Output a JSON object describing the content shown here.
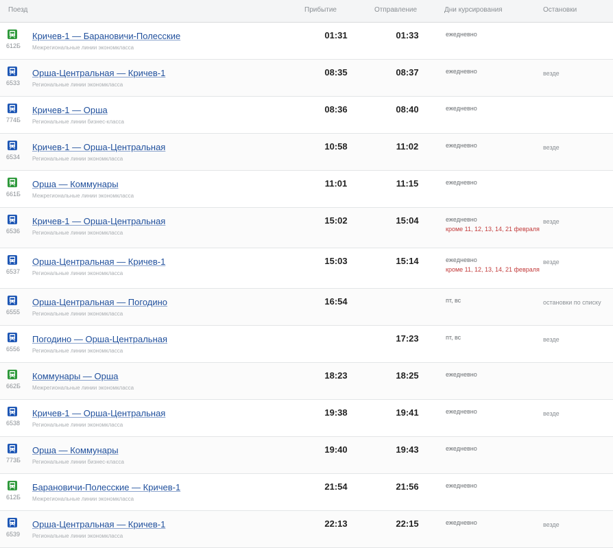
{
  "header": {
    "train": "Поезд",
    "arrival": "Прибытие",
    "departure": "Отправление",
    "days": "Дни курсирования",
    "stops": "Остановки"
  },
  "colors": {
    "regional": "#1e57b5",
    "interregional": "#2f9a3c",
    "link": "#1f4f9c",
    "extra_days": "#c23a3a"
  },
  "rows": [
    {
      "icon": "green-train-icon",
      "kind": "green",
      "number": "612Б",
      "route": "Кричев-1 — Барановичи-Полесские",
      "subtype": "Межрегиональные линии экономкласса",
      "arrival": "01:31",
      "departure": "01:33",
      "days": "ежедневно",
      "days_extra": "",
      "stops": ""
    },
    {
      "icon": "blue-train-icon",
      "kind": "blue",
      "number": "6533",
      "route": "Орша-Центральная — Кричев-1",
      "subtype": "Региональные линии экономкласса",
      "arrival": "08:35",
      "departure": "08:37",
      "days": "ежедневно",
      "days_extra": "",
      "stops": "везде"
    },
    {
      "icon": "blue-train-icon",
      "kind": "blue",
      "number": "774Б",
      "route": "Кричев-1 — Орша",
      "subtype": "Региональные линии бизнес-класса",
      "arrival": "08:36",
      "departure": "08:40",
      "days": "ежедневно",
      "days_extra": "",
      "stops": ""
    },
    {
      "icon": "blue-train-icon",
      "kind": "blue",
      "number": "6534",
      "route": "Кричев-1 — Орша-Центральная",
      "subtype": "Региональные линии экономкласса",
      "arrival": "10:58",
      "departure": "11:02",
      "days": "ежедневно",
      "days_extra": "",
      "stops": "везде"
    },
    {
      "icon": "green-train-icon",
      "kind": "green",
      "number": "661Б",
      "route": "Орша — Коммунары",
      "subtype": "Межрегиональные линии экономкласса",
      "arrival": "11:01",
      "departure": "11:15",
      "days": "ежедневно",
      "days_extra": "",
      "stops": ""
    },
    {
      "icon": "blue-train-icon",
      "kind": "blue",
      "number": "6536",
      "route": "Кричев-1 — Орша-Центральная",
      "subtype": "Региональные линии экономкласса",
      "arrival": "15:02",
      "departure": "15:04",
      "days": "ежедневно",
      "days_extra": "кроме 11, 12, 13, 14, 21 февраля",
      "stops": "везде"
    },
    {
      "icon": "blue-train-icon",
      "kind": "blue",
      "number": "6537",
      "route": "Орша-Центральная — Кричев-1",
      "subtype": "Региональные линии экономкласса",
      "arrival": "15:03",
      "departure": "15:14",
      "days": "ежедневно",
      "days_extra": "кроме 11, 12, 13, 14, 21 февраля",
      "stops": "везде"
    },
    {
      "icon": "blue-train-icon",
      "kind": "blue",
      "number": "6555",
      "route": "Орша-Центральная — Погодино",
      "subtype": "Региональные линии экономкласса",
      "arrival": "16:54",
      "departure": "",
      "days": "пт, вс",
      "days_extra": "",
      "stops": "остановки по списку"
    },
    {
      "icon": "blue-train-icon",
      "kind": "blue",
      "number": "6556",
      "route": "Погодино — Орша-Центральная",
      "subtype": "Региональные линии экономкласса",
      "arrival": "",
      "departure": "17:23",
      "days": "пт, вс",
      "days_extra": "",
      "stops": "везде"
    },
    {
      "icon": "green-train-icon",
      "kind": "green",
      "number": "662Б",
      "route": "Коммунары — Орша",
      "subtype": "Межрегиональные линии экономкласса",
      "arrival": "18:23",
      "departure": "18:25",
      "days": "ежедневно",
      "days_extra": "",
      "stops": ""
    },
    {
      "icon": "blue-train-icon",
      "kind": "blue",
      "number": "6538",
      "route": "Кричев-1 — Орша-Центральная",
      "subtype": "Региональные линии экономкласса",
      "arrival": "19:38",
      "departure": "19:41",
      "days": "ежедневно",
      "days_extra": "",
      "stops": "везде"
    },
    {
      "icon": "blue-train-icon",
      "kind": "blue",
      "number": "773Б",
      "route": "Орша — Коммунары",
      "subtype": "Региональные линии бизнес-класса",
      "arrival": "19:40",
      "departure": "19:43",
      "days": "ежедневно",
      "days_extra": "",
      "stops": ""
    },
    {
      "icon": "green-train-icon",
      "kind": "green",
      "number": "612Б",
      "route": "Барановичи-Полесские — Кричев-1",
      "subtype": "Межрегиональные линии экономкласса",
      "arrival": "21:54",
      "departure": "21:56",
      "days": "ежедневно",
      "days_extra": "",
      "stops": ""
    },
    {
      "icon": "blue-train-icon",
      "kind": "blue",
      "number": "6539",
      "route": "Орша-Центральная — Кричев-1",
      "subtype": "Региональные линии экономкласса",
      "arrival": "22:13",
      "departure": "22:15",
      "days": "ежедневно",
      "days_extra": "",
      "stops": "везде"
    }
  ]
}
